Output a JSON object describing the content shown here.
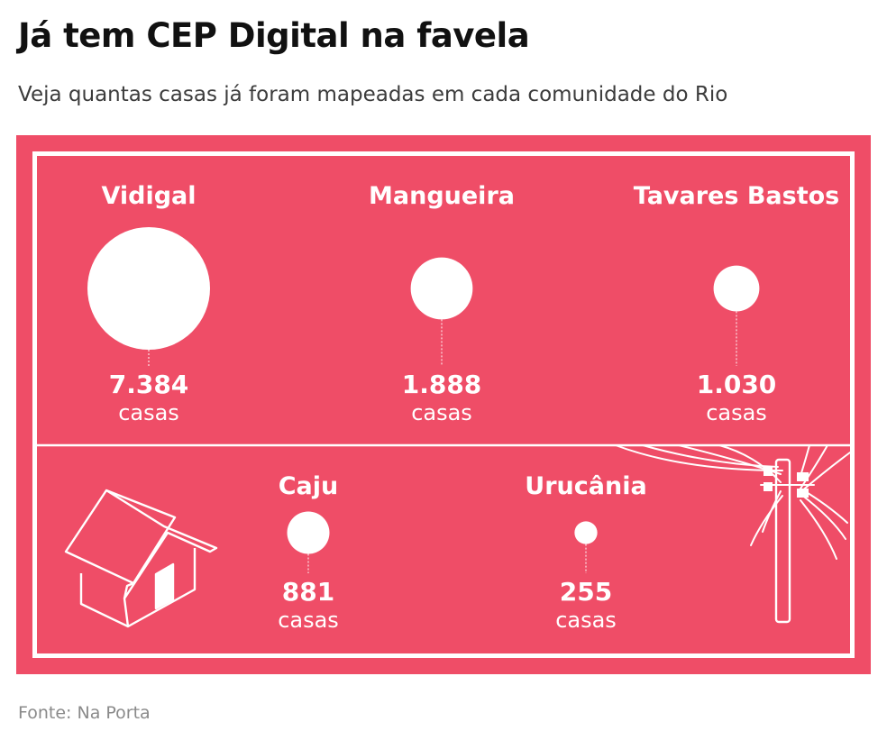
{
  "header": {
    "title": "Já tem CEP Digital na favela",
    "subtitle": "Veja quantas casas já foram mapeadas em cada comunidade do Rio"
  },
  "footer": {
    "source": "Fonte: Na Porta"
  },
  "colors": {
    "panel": "#ef4d67",
    "marks": "#ffffff"
  },
  "illustrations": [
    "house-icon",
    "utility-pole-icon"
  ],
  "chart_data": {
    "type": "bubble",
    "title": "Já tem CEP Digital na favela",
    "subtitle": "Veja quantas casas já foram mapeadas em cada comunidade do Rio",
    "unit": "casas",
    "categories": [
      "Vidigal",
      "Mangueira",
      "Tavares Bastos",
      "Caju",
      "Urucânia"
    ],
    "values": [
      7384,
      1888,
      1030,
      881,
      255
    ],
    "value_labels": [
      "7.384",
      "1.888",
      "1.030",
      "881",
      "255"
    ],
    "source": "Fonte: Na Porta"
  }
}
